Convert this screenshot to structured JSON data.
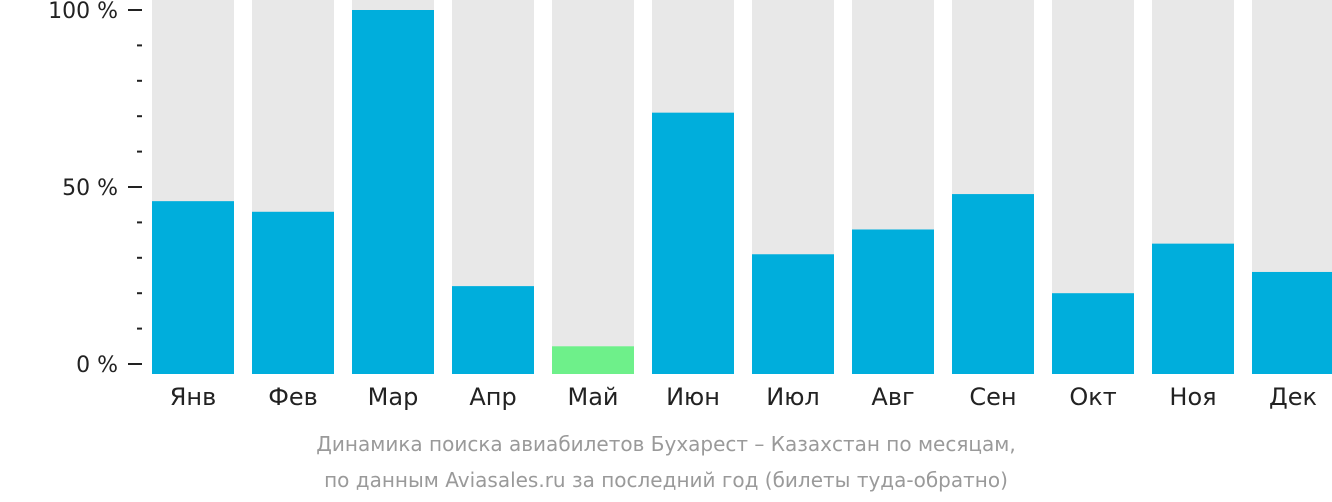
{
  "chart_data": {
    "type": "bar",
    "categories": [
      "Янв",
      "Фев",
      "Мар",
      "Апр",
      "Май",
      "Июн",
      "Июл",
      "Авг",
      "Сен",
      "Окт",
      "Ноя",
      "Дек"
    ],
    "values": [
      46,
      43,
      100,
      22,
      5,
      71,
      31,
      38,
      48,
      20,
      34,
      26
    ],
    "highlight_index": 4,
    "ylim": [
      0,
      100
    ],
    "y_ticks": [
      {
        "value": 0,
        "label": "0 %"
      },
      {
        "value": 50,
        "label": "50 %"
      },
      {
        "value": 100,
        "label": "100 %"
      }
    ],
    "y_minor_tick_step": 10,
    "grid": false,
    "colors": {
      "bar": "#00aedc",
      "highlight": "#6ef08a",
      "track": "#e8e8e8",
      "axis": "#222222",
      "caption": "#9a9a9a"
    },
    "caption": {
      "line1": "Динамика поиска авиабилетов Бухарест – Казахстан по месяцам,",
      "line2": "по данным Aviasales.ru за последний год (билеты туда-обратно)"
    }
  }
}
